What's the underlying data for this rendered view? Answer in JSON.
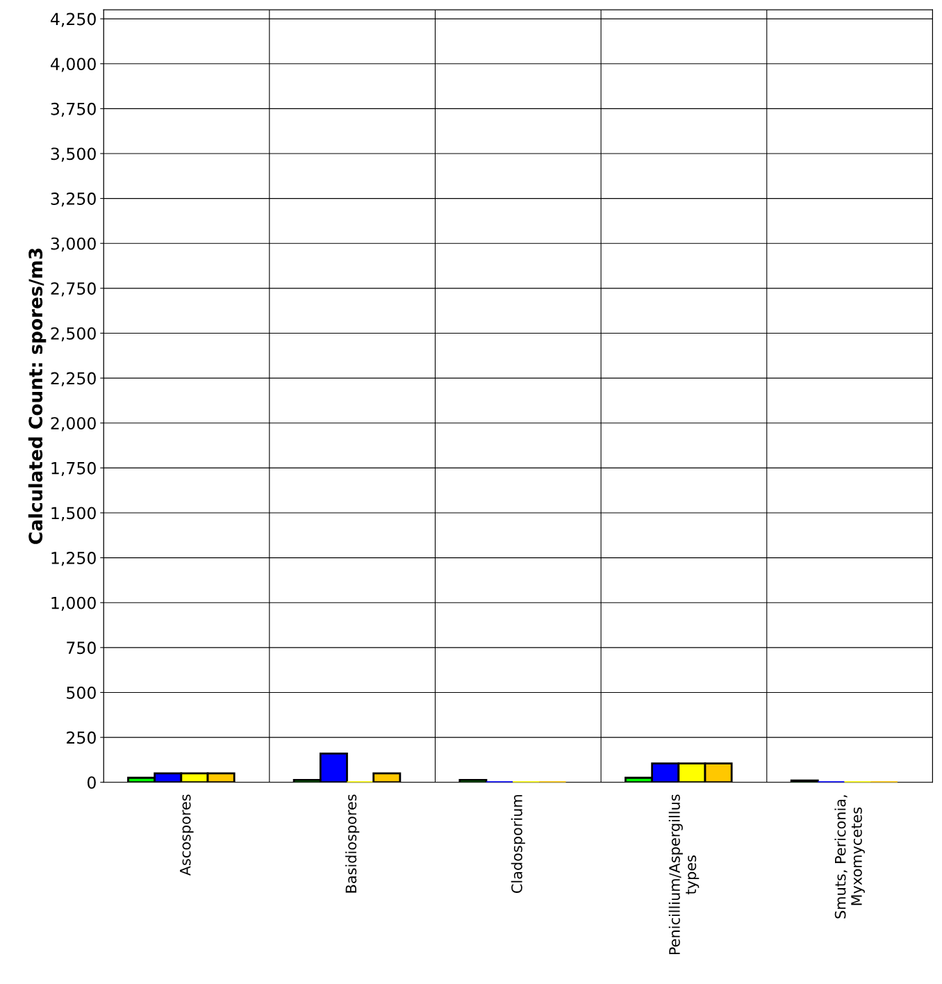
{
  "chart_data": {
    "type": "bar",
    "ylabel": "Calculated Count: spores/m3",
    "categories": [
      "Ascospores",
      "Basidiospores",
      "Cladosporium",
      "Penicillium/Aspergillus\ntypes",
      "Smuts, Periconia,\nMyxomycetes"
    ],
    "series": [
      {
        "color": "#00ff00",
        "values": [
          25,
          13,
          13,
          25,
          10
        ]
      },
      {
        "color": "#0000ff",
        "values": [
          50,
          160,
          0,
          105,
          0
        ]
      },
      {
        "color": "#ffff00",
        "values": [
          50,
          0,
          0,
          105,
          0
        ]
      },
      {
        "color": "#ffc800",
        "values": [
          50,
          50,
          0,
          105,
          0
        ]
      }
    ],
    "ylim": [
      0,
      4300
    ],
    "yticks": [
      {
        "value": 0,
        "label": "0"
      },
      {
        "value": 250,
        "label": "250"
      },
      {
        "value": 500,
        "label": "500"
      },
      {
        "value": 750,
        "label": "750"
      },
      {
        "value": 1000,
        "label": "1,000"
      },
      {
        "value": 1250,
        "label": "1,250"
      },
      {
        "value": 1500,
        "label": "1,500"
      },
      {
        "value": 1750,
        "label": "1,750"
      },
      {
        "value": 2000,
        "label": "2,000"
      },
      {
        "value": 2250,
        "label": "2,250"
      },
      {
        "value": 2500,
        "label": "2,500"
      },
      {
        "value": 2750,
        "label": "2,750"
      },
      {
        "value": 3000,
        "label": "3,000"
      },
      {
        "value": 3250,
        "label": "3,250"
      },
      {
        "value": 3500,
        "label": "3,500"
      },
      {
        "value": 3750,
        "label": "3,750"
      },
      {
        "value": 4000,
        "label": "4,000"
      },
      {
        "value": 4250,
        "label": "4,250"
      }
    ],
    "grid": true,
    "legend": false
  }
}
